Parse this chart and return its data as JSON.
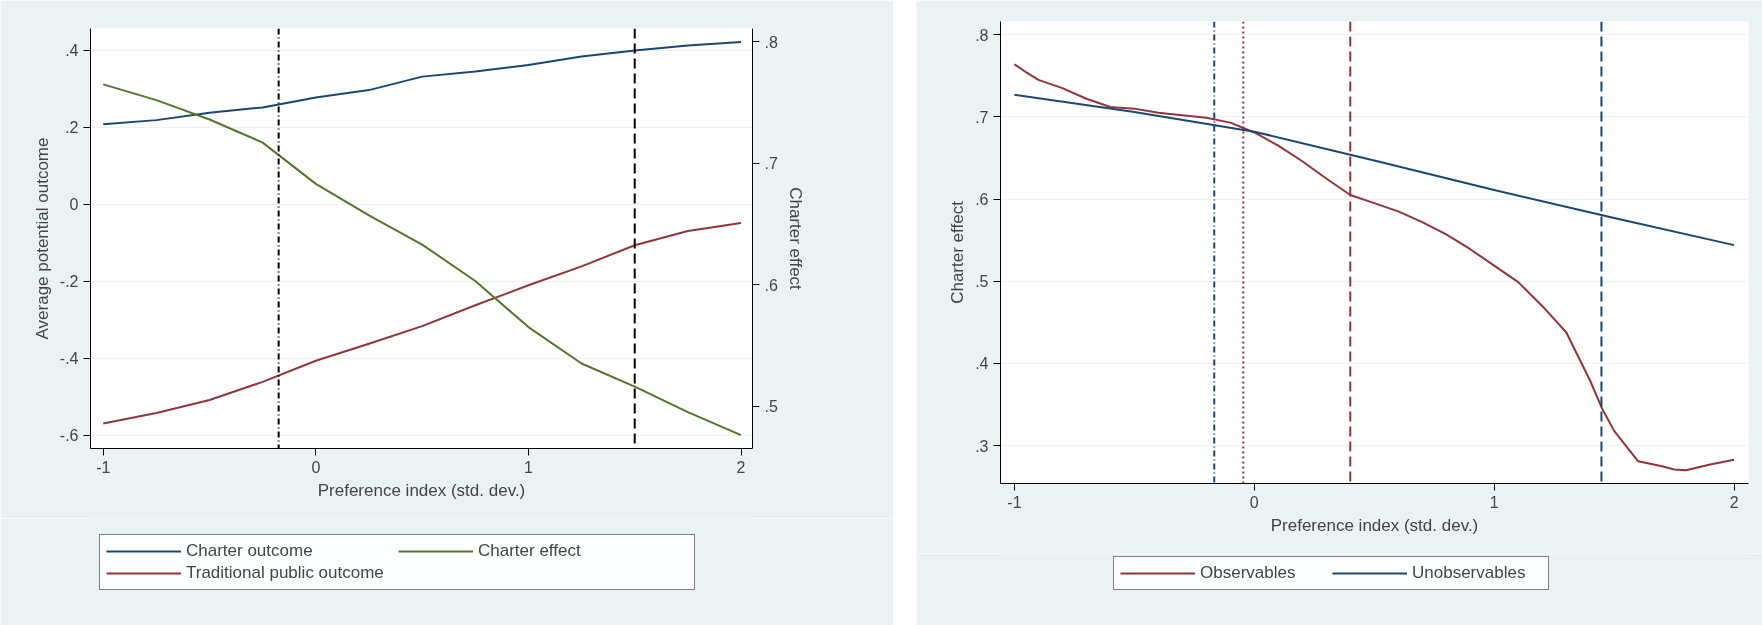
{
  "chart_data": [
    {
      "type": "line",
      "xlabel": "Preference index (std. dev.)",
      "ylabel": "Average potential outcome",
      "y2label": "Charter effect",
      "xlim": [
        -1.06,
        2.054
      ],
      "xticks": [
        -1,
        0,
        1,
        2
      ],
      "ylim": [
        -0.634,
        0.457
      ],
      "yticks": [
        {
          "value": -0.6,
          "label": "-.6"
        },
        {
          "value": -0.4,
          "label": "-.4"
        },
        {
          "value": -0.2,
          "label": "-.2"
        },
        0,
        {
          "value": 0.2,
          "label": ".2"
        },
        {
          "value": 0.4,
          "label": ".4"
        }
      ],
      "y2lim": [
        0.465,
        0.811
      ],
      "y2ticks": [
        {
          "value": 0.5,
          "label": ".5"
        },
        {
          "value": 0.6,
          "label": ".6"
        },
        {
          "value": 0.7,
          "label": ".7"
        },
        {
          "value": 0.8,
          "label": ".8"
        }
      ],
      "grid": "y",
      "legend": "bottom",
      "marker": "none",
      "line_style": "solid",
      "x": [
        -1,
        -0.75,
        -0.5,
        -0.25,
        0,
        0.25,
        0.5,
        0.75,
        1,
        1.25,
        1.5,
        1.75,
        2
      ],
      "series": [
        {
          "name": "Charter outcome",
          "color": "#1a476f",
          "values": [
            0.208,
            0.219,
            0.238,
            0.252,
            0.278,
            0.297,
            0.332,
            0.345,
            0.362,
            0.384,
            0.4,
            0.413,
            0.422
          ]
        },
        {
          "name": "Traditional public outcome",
          "color": "#90353b",
          "values": [
            -0.569,
            -0.542,
            -0.508,
            -0.461,
            -0.406,
            -0.362,
            -0.316,
            -0.262,
            -0.21,
            -0.161,
            -0.106,
            -0.069,
            -0.048
          ]
        },
        {
          "name": "Charter effect",
          "color": "#55752f",
          "axis": "y2",
          "values": [
            0.765,
            0.752,
            0.736,
            0.717,
            0.683,
            0.657,
            0.633,
            0.603,
            0.565,
            0.535,
            0.516,
            0.495,
            0.476
          ]
        }
      ],
      "ref_lines": [
        {
          "axis": "x",
          "value": -0.175,
          "color": "#000000",
          "line_style": "dashdot"
        },
        {
          "axis": "x",
          "value": 1.5,
          "color": "#000000",
          "line_style": "dashed"
        }
      ]
    },
    {
      "type": "line",
      "xlabel": "Preference index (std. dev.)",
      "ylabel": "Charter effect",
      "xlim": [
        -1.058,
        2.06
      ],
      "xticks": [
        -1,
        0,
        1,
        2
      ],
      "ylim": [
        0.254,
        0.816
      ],
      "yticks": [
        {
          "value": 0.3,
          "label": ".3"
        },
        {
          "value": 0.4,
          "label": ".4"
        },
        {
          "value": 0.5,
          "label": ".5"
        },
        {
          "value": 0.6,
          "label": ".6"
        },
        {
          "value": 0.7,
          "label": ".7"
        },
        {
          "value": 0.8,
          "label": ".8"
        }
      ],
      "grid": "y",
      "legend": "bottom",
      "marker": "none",
      "line_style": "solid",
      "series": [
        {
          "name": "Observables",
          "color": "#90353b",
          "x": [
            -1,
            -0.95,
            -0.9,
            -0.8,
            -0.7,
            -0.6,
            -0.5,
            -0.4,
            -0.3,
            -0.2,
            -0.1,
            0,
            0.1,
            0.2,
            0.3,
            0.4,
            0.5,
            0.6,
            0.7,
            0.8,
            0.9,
            1.0,
            1.1,
            1.2,
            1.3,
            1.4,
            1.45,
            1.5,
            1.6,
            1.7,
            1.75,
            1.8,
            1.9,
            2.0
          ],
          "values": [
            0.764,
            0.754,
            0.745,
            0.735,
            0.722,
            0.712,
            0.71,
            0.705,
            0.702,
            0.699,
            0.693,
            0.681,
            0.665,
            0.646,
            0.625,
            0.605,
            0.595,
            0.585,
            0.572,
            0.557,
            0.539,
            0.519,
            0.499,
            0.47,
            0.438,
            0.379,
            0.345,
            0.318,
            0.281,
            0.275,
            0.271,
            0.27,
            0.277,
            0.283
          ]
        },
        {
          "name": "Unobservables",
          "color": "#1a476f",
          "x": [
            -1,
            -0.5,
            0,
            0.5,
            1,
            1.5,
            2
          ],
          "values": [
            0.727,
            0.706,
            0.682,
            0.647,
            0.611,
            0.577,
            0.544
          ]
        }
      ],
      "ref_lines": [
        {
          "axis": "x",
          "value": -0.167,
          "color": "#1a476f",
          "line_style": "dashdot"
        },
        {
          "axis": "x",
          "value": -0.046,
          "color": "#90353b",
          "line_style": "dotted"
        },
        {
          "axis": "x",
          "value": 0.4,
          "color": "#90353b",
          "line_style": "dashed"
        },
        {
          "axis": "x",
          "value": 1.447,
          "color": "#1a476f",
          "line_style": "dashed"
        }
      ]
    }
  ]
}
